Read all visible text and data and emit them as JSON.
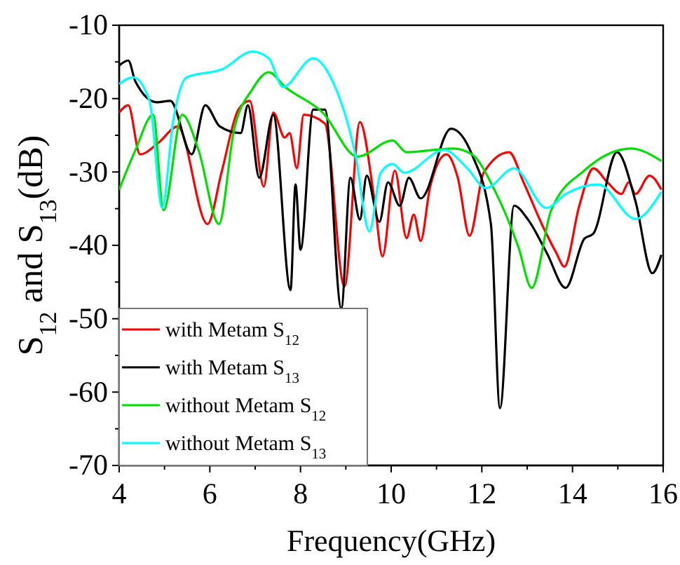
{
  "chart_data": {
    "type": "line",
    "xlabel": "Frequency(GHz)",
    "ylabel": "S$_{12}$ and S$_{13}$(dB)",
    "xlim": [
      4,
      16
    ],
    "ylim": [
      -70,
      -10
    ],
    "xticks": [
      4,
      {
        "value": 5,
        "label": null
      },
      6,
      {
        "value": 7,
        "label": null
      },
      8,
      {
        "value": 9,
        "label": null
      },
      10,
      {
        "value": 11,
        "label": null
      },
      12,
      {
        "value": 13,
        "label": null
      },
      14,
      {
        "value": 15,
        "label": null
      },
      16
    ],
    "yticks": [
      -70,
      {
        "value": -65,
        "label": null
      },
      -60,
      {
        "value": -55,
        "label": null
      },
      -50,
      {
        "value": -45,
        "label": null
      },
      -40,
      {
        "value": -35,
        "label": null
      },
      -30,
      {
        "value": -25,
        "label": null
      },
      -20,
      {
        "value": -15,
        "label": null
      },
      -10
    ],
    "grid": false,
    "legend": "bottom left",
    "line_style": "solid",
    "marker": "none",
    "series": [
      {
        "name": "with Metam S$_{12}$",
        "color": "#ff0000",
        "x": [
          4,
          4.2,
          4.46,
          4.87,
          5.29,
          5.95,
          6.26,
          6.63,
          6.88,
          7.19,
          7.4,
          7.65,
          7.76,
          7.92,
          8.07,
          8.54,
          8.97,
          9.31,
          9.62,
          9.81,
          10.08,
          10.34,
          10.5,
          10.65,
          10.86,
          11.22,
          11.47,
          11.73,
          12.04,
          12.6,
          12.92,
          13.33,
          13.64,
          13.82,
          14.15,
          14.46,
          14.77,
          15.08,
          15.24,
          15.39,
          15.7,
          15.96
        ],
        "values": [
          -21.9,
          -20.9,
          -27.6,
          -26,
          -23.8,
          -37.1,
          -30,
          -21.5,
          -20.3,
          -32,
          -21.9,
          -25.3,
          -24.7,
          -29.5,
          -22.2,
          -23.4,
          -45.6,
          -23.2,
          -33.3,
          -41.5,
          -29.8,
          -39,
          -35.8,
          -39.4,
          -32,
          -27.6,
          -30.8,
          -38.7,
          -30.1,
          -27.3,
          -31.4,
          -37.2,
          -41,
          -42.9,
          -34.6,
          -29.5,
          -31.4,
          -33,
          -31.4,
          -33,
          -30.5,
          -32.4
        ]
      },
      {
        "name": "with Metam S$_{13}$",
        "color": "#000000",
        "x": [
          4,
          4.2,
          4.36,
          4.83,
          5.13,
          5.6,
          5.9,
          6.22,
          6.68,
          6.84,
          7.09,
          7.4,
          7.78,
          7.89,
          8.0,
          8.28,
          8.54,
          8.9,
          9.1,
          9.31,
          9.46,
          9.74,
          9.93,
          10.19,
          10.39,
          10.65,
          11.32,
          11.78,
          12.2,
          12.4,
          12.71,
          13.02,
          13.43,
          13.85,
          14.26,
          14.46,
          14.98,
          15.39,
          15.76,
          15.96
        ],
        "values": [
          -15.5,
          -14.8,
          -17.7,
          -20.5,
          -20.3,
          -27.6,
          -20.9,
          -23.8,
          -24.7,
          -20.9,
          -30.8,
          -22.2,
          -46.1,
          -31.7,
          -40.6,
          -21.5,
          -21.5,
          -48.6,
          -30.8,
          -36.5,
          -30.5,
          -36.8,
          -31.4,
          -34.6,
          -30.8,
          -33.6,
          -24.1,
          -27.6,
          -37.1,
          -62.2,
          -34.6,
          -36.5,
          -41,
          -45.8,
          -39.1,
          -38.4,
          -27.3,
          -34,
          -43.8,
          -41.3
        ]
      },
      {
        "name": "without Metam S$_{12}$",
        "color": "#00e000",
        "x": [
          4,
          4.36,
          4.75,
          4.98,
          5.39,
          5.75,
          6.2,
          6.53,
          6.94,
          7.3,
          7.66,
          8.49,
          9.26,
          10.03,
          10.34,
          11.37,
          11.78,
          12.3,
          12.81,
          13.1,
          13.53,
          14.26,
          15.29,
          15.96
        ],
        "values": [
          -32.4,
          -27,
          -22.2,
          -35.2,
          -22.2,
          -27,
          -37.1,
          -24.4,
          -18.7,
          -16.4,
          -18.4,
          -21.9,
          -27.9,
          -25.7,
          -27.3,
          -26.8,
          -27.6,
          -32.7,
          -40.3,
          -45.8,
          -35.2,
          -29.8,
          -26.8,
          -28.5
        ]
      },
      {
        "name": "without Metam S$_{13}$",
        "color": "#00ffff",
        "x": [
          4,
          4.31,
          4.67,
          4.95,
          5.19,
          5.49,
          6.27,
          6.94,
          7.3,
          7.61,
          8.28,
          8.69,
          9.21,
          9.52,
          9.77,
          10.03,
          10.29,
          11.17,
          11.68,
          12.09,
          12.71,
          13.43,
          13.85,
          14.57,
          15.39,
          15.96
        ],
        "values": [
          -18,
          -17.1,
          -20.3,
          -34.9,
          -23.1,
          -17.1,
          -16,
          -13.6,
          -14.5,
          -18.4,
          -14.5,
          -17.4,
          -27.6,
          -38.1,
          -30.1,
          -28.9,
          -30.1,
          -27,
          -29.5,
          -32.2,
          -29.5,
          -34.9,
          -33,
          -31.7,
          -36.4,
          -32.7
        ]
      }
    ]
  }
}
